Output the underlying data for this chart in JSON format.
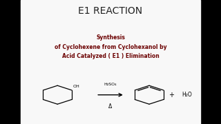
{
  "title": "E1 REACTION",
  "subtitle_line1": "Synthesis",
  "subtitle_line2": "of Cyclohexene from Cyclohexanol by",
  "subtitle_line3": "Acid Catalyzed ( E1 ) Elimination",
  "subtitle_color": "#6B0000",
  "title_color": "#222222",
  "bg_color": "#000000",
  "panel_bg": "#f8f8f8",
  "reagent_label": "H₂SO₄",
  "heat_label": "Δ",
  "water_label": "H₂O",
  "plus_label": "+",
  "border_width": 0.095
}
